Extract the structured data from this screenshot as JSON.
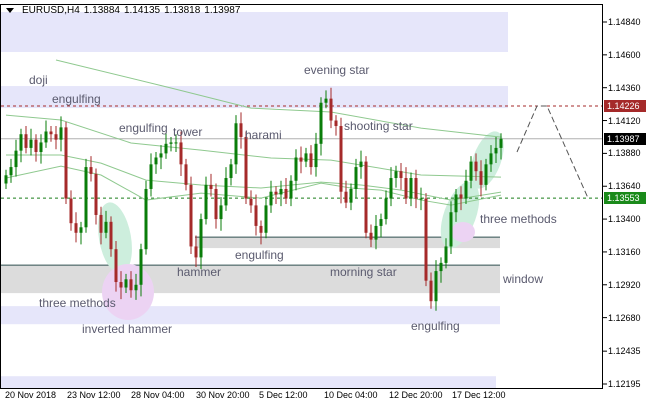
{
  "header": {
    "symbol": "EURUSD,H4",
    "open": "1.13884",
    "high": "1.14135",
    "low": "1.13818",
    "close": "1.13987"
  },
  "colors": {
    "bull": "#0a7d0a",
    "bear": "#a52a2a",
    "zone_lavender": "#e6e6fa",
    "zone_gray": "#dcdcdc",
    "ellipse_green": "#cdeedd",
    "ellipse_pink": "#ecd3f3",
    "ma_line": "#8fc98f",
    "resistance": "#a52a2a",
    "support": "#1a7d1a"
  },
  "chart_data": {
    "type": "candlestick",
    "symbol": "EURUSD",
    "timeframe": "H4",
    "ylim": [
      1.12195,
      1.1484
    ],
    "y_ticks": [
      "1.14840",
      "1.14600",
      "1.14360",
      "1.14120",
      "1.13880",
      "1.13640",
      "1.13400",
      "1.13160",
      "1.12920",
      "1.12680",
      "1.12435",
      "1.12195"
    ],
    "x_ticks": [
      "20 Nov 2018",
      "23 Nov 12:00",
      "28 Nov 04:00",
      "30 Nov 20:00",
      "5 Dec 12:00",
      "10 Dec 04:00",
      "12 Dec 20:00",
      "17 Dec 12:00"
    ],
    "closes": [
      1.1372,
      1.1378,
      1.139,
      1.1402,
      1.1392,
      1.1398,
      1.1389,
      1.1396,
      1.1404,
      1.1402,
      1.1398,
      1.1407,
      1.1355,
      1.1337,
      1.133,
      1.1334,
      1.1378,
      1.1373,
      1.1343,
      1.133,
      1.1338,
      1.1318,
      1.1294,
      1.129,
      1.1296,
      1.1288,
      1.1292,
      1.1318,
      1.1362,
      1.138,
      1.1385,
      1.1388,
      1.1395,
      1.1396,
      1.1396,
      1.138,
      1.1365,
      1.132,
      1.1312,
      1.134,
      1.1365,
      1.1362,
      1.134,
      1.135,
      1.137,
      1.138,
      1.141,
      1.14,
      1.1355,
      1.135,
      1.1335,
      1.133,
      1.135,
      1.136,
      1.1358,
      1.1362,
      1.1355,
      1.1368,
      1.1385,
      1.1382,
      1.1388,
      1.1378,
      1.1395,
      1.1425,
      1.1428,
      1.1412,
      1.1408,
      1.136,
      1.1352,
      1.1362,
      1.1378,
      1.1382,
      1.133,
      1.1325,
      1.1335,
      1.134,
      1.1355,
      1.137,
      1.1375,
      1.137,
      1.1355,
      1.137,
      1.1355,
      1.1355,
      1.1295,
      1.128,
      1.1302,
      1.1308,
      1.132,
      1.1345,
      1.1358,
      1.1355,
      1.1368,
      1.1382,
      1.1375,
      1.1365,
      1.138,
      1.1388,
      1.1392,
      1.13987
    ],
    "moving_averages": [
      [
        [
          10,
          1.14562
        ],
        [
          33,
          1.14358
        ],
        [
          49,
          1.14211
        ],
        [
          65,
          1.14182
        ],
        [
          83,
          1.14065
        ],
        [
          99,
          1.13999
        ]
      ],
      [
        [
          0,
          1.1416
        ],
        [
          11,
          1.14124
        ],
        [
          25,
          1.13956
        ],
        [
          39,
          1.13904
        ],
        [
          53,
          1.13846
        ],
        [
          65,
          1.13831
        ],
        [
          83,
          1.13722
        ],
        [
          99,
          1.13707
        ]
      ],
      [
        [
          0,
          1.13868
        ],
        [
          11,
          1.13868
        ],
        [
          19,
          1.13809
        ],
        [
          28,
          1.13685
        ],
        [
          39,
          1.13649
        ],
        [
          51,
          1.13627
        ],
        [
          63,
          1.1367
        ],
        [
          71,
          1.13649
        ],
        [
          79,
          1.13612
        ],
        [
          89,
          1.13539
        ],
        [
          99,
          1.13597
        ]
      ],
      [
        [
          0,
          1.137
        ],
        [
          11,
          1.13787
        ],
        [
          19,
          1.13722
        ],
        [
          28,
          1.13539
        ],
        [
          39,
          1.1359
        ],
        [
          51,
          1.13553
        ],
        [
          63,
          1.13663
        ],
        [
          69,
          1.13627
        ],
        [
          75,
          1.13612
        ],
        [
          83,
          1.13539
        ],
        [
          89,
          1.13502
        ],
        [
          99,
          1.13575
        ]
      ]
    ],
    "levels": {
      "resistance": "1.14226",
      "current": "1.13987",
      "support": "1.13553"
    },
    "zones": [
      {
        "kind": "lavender",
        "top": 1.14913,
        "bottom": 1.14621
      },
      {
        "kind": "lavender",
        "top": 1.14372,
        "bottom": 1.14211
      },
      {
        "kind": "gray",
        "top": 1.13268,
        "bottom": 1.13188
      },
      {
        "kind": "gray",
        "top": 1.13064,
        "bottom": 1.12859
      },
      {
        "kind": "lavender",
        "top": 1.12764,
        "bottom": 1.12632
      },
      {
        "kind": "lavender",
        "top": 1.12252,
        "bottom": 1.12164
      }
    ],
    "annotations": [
      "doji",
      "engulfing",
      "engulfing",
      "tower",
      "harami",
      "evening star",
      "shooting star",
      "three methods",
      "inverted hammer",
      "hammer",
      "engulfing",
      "morning star",
      "engulfing",
      "three methods",
      "window"
    ]
  }
}
